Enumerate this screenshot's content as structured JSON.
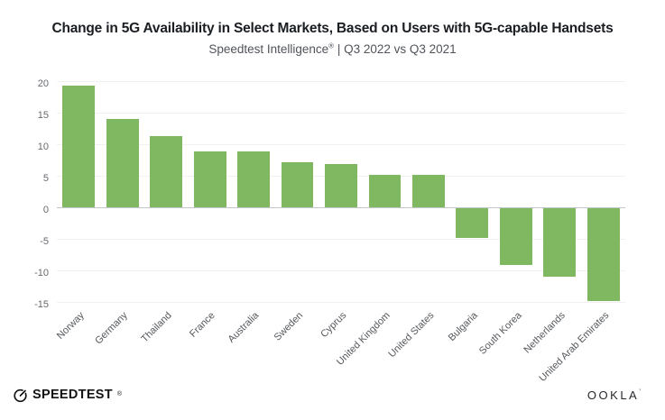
{
  "chart_data": {
    "type": "bar",
    "title": "Change in 5G Availability in Select Markets, Based on Users with 5G-capable Handsets",
    "subtitle": "Speedtest Intelligence® | Q3 2022 vs Q3 2021",
    "subtitle_parts": {
      "brand": "Speedtest Intelligence",
      "reg": "®",
      "rest": " | Q3 2022 vs Q3 2021"
    },
    "categories": [
      "Norway",
      "Germany",
      "Thailand",
      "France",
      "Australia",
      "Sweden",
      "Cyprus",
      "United Kingdom",
      "United States",
      "Bulgaria",
      "South Korea",
      "Netherlands",
      "United Arab Emirates"
    ],
    "values": [
      19.3,
      14.0,
      11.3,
      8.9,
      8.8,
      7.1,
      6.9,
      5.1,
      5.1,
      -4.9,
      -9.2,
      -11.0,
      -14.8
    ],
    "xlabel": "",
    "ylabel": "",
    "yticks": [
      20,
      15,
      10,
      5,
      0,
      -5,
      -10,
      -15
    ],
    "ylim": [
      -15.7,
      20.4
    ],
    "grid": "horizontal-light",
    "legend": "none",
    "x_tick_rotation": -45,
    "bar_color": "#7fb860"
  },
  "footer": {
    "speedtest_label": "SPEEDTEST",
    "speedtest_reg": "®",
    "ookla_label": "OOKLA",
    "ookla_mark": "’"
  },
  "colors": {
    "bar_green": "#7fb860",
    "title_text": "#1a1d21",
    "subtitle_text": "#50545a",
    "axis_text": "#66696d",
    "zero_line": "#c3c7cb",
    "gridline": "#f0f0f0",
    "logo_black": "#141414"
  }
}
